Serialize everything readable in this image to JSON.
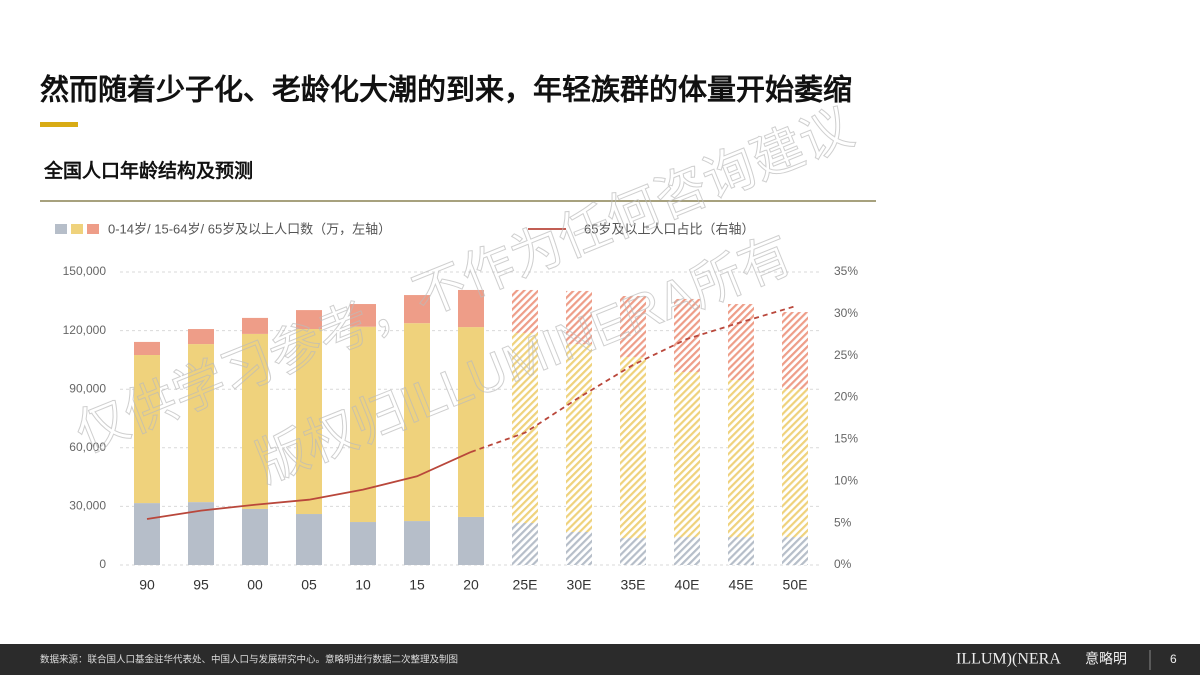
{
  "header": {
    "title": "然而随着少子化、老龄化大潮的到来，年轻族群的体量开始萎缩"
  },
  "chart_data": {
    "type": "bar-line",
    "title": "全国人口年龄结构及预测",
    "categories": [
      "90",
      "95",
      "00",
      "05",
      "10",
      "15",
      "20",
      "25E",
      "30E",
      "35E",
      "40E",
      "45E",
      "50E"
    ],
    "forecast_from": "25E",
    "legend": {
      "bars": "0-14岁/ 15-64岁/ 65岁及以上人口数（万，左轴）",
      "line": "65岁及以上人口占比（右轴）"
    },
    "series": [
      {
        "color": "#b6bec9",
        "values": [
          31700,
          32200,
          28700,
          26100,
          22000,
          22500,
          24600,
          21500,
          16900,
          13800,
          14300,
          14300,
          14300
        ]
      },
      {
        "color": "#efd27c",
        "values": [
          75800,
          80900,
          89600,
          94700,
          100000,
          101300,
          97200,
          97300,
          96200,
          92700,
          84500,
          80400,
          75800
        ]
      },
      {
        "color": "#ee9d88",
        "values": [
          6700,
          7700,
          8200,
          9700,
          11600,
          14400,
          19000,
          22000,
          27200,
          31200,
          37400,
          38900,
          39400
        ]
      },
      {
        "type": "line",
        "axis": "y2",
        "color": "#b9473b",
        "values": [
          5.5,
          6.5,
          7.2,
          7.8,
          9.0,
          10.6,
          13.5,
          15.8,
          20.0,
          23.9,
          27.0,
          29.0,
          30.9
        ]
      }
    ],
    "ylim": [
      0,
      150000
    ],
    "yticks": [
      0,
      {
        "value": 30000,
        "label": "30,000"
      },
      {
        "value": 60000,
        "label": "60,000"
      },
      {
        "value": 90000,
        "label": "90,000"
      },
      {
        "value": 120000,
        "label": "120,000"
      },
      {
        "value": 150000,
        "label": "150,000"
      }
    ],
    "y2lim": [
      0,
      35
    ],
    "y2ticks": [
      {
        "value": 0,
        "label": "0%"
      },
      {
        "value": 5,
        "label": "5%"
      },
      {
        "value": 10,
        "label": "10%"
      },
      {
        "value": 15,
        "label": "15%"
      },
      {
        "value": 20,
        "label": "20%"
      },
      {
        "value": 25,
        "label": "25%"
      },
      {
        "value": 30,
        "label": "30%"
      },
      {
        "value": 35,
        "label": "35%"
      }
    ],
    "grid": true
  },
  "watermark": [
    "仅供学习参考，不作为任何咨询建议",
    "版权归ILLUMINERA所有"
  ],
  "footer": {
    "source": "数据来源：联合国人口基金驻华代表处、中国人口与发展研究中心。意略明进行数据二次整理及制图",
    "brand": "ILLUM)(NERA",
    "brand_cn": "意略明",
    "page": "6"
  }
}
